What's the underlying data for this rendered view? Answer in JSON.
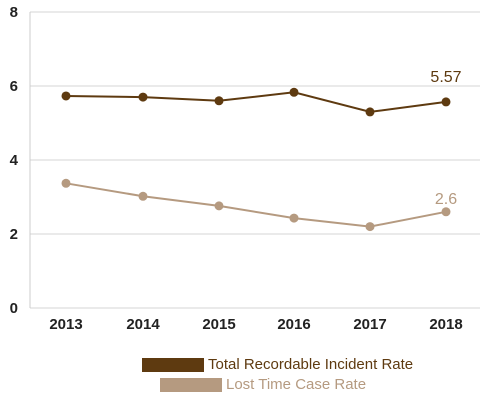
{
  "chart_data": {
    "type": "line",
    "categories": [
      "2013",
      "2014",
      "2015",
      "2016",
      "2017",
      "2018"
    ],
    "yticks": [
      "0",
      "2",
      "4",
      "6",
      "8"
    ],
    "ylim": [
      0,
      8
    ],
    "grid": true,
    "legend_position": "bottom",
    "series": [
      {
        "name": "Total Recordable Incident Rate",
        "values": [
          5.73,
          5.7,
          5.6,
          5.83,
          5.3,
          5.57
        ],
        "color": "#5e3a10",
        "end_label": "5.57"
      },
      {
        "name": "Lost Time Case Rate",
        "values": [
          3.37,
          3.02,
          2.76,
          2.43,
          2.2,
          2.6
        ],
        "color": "#b59a80",
        "end_label": "2.6"
      }
    ]
  }
}
